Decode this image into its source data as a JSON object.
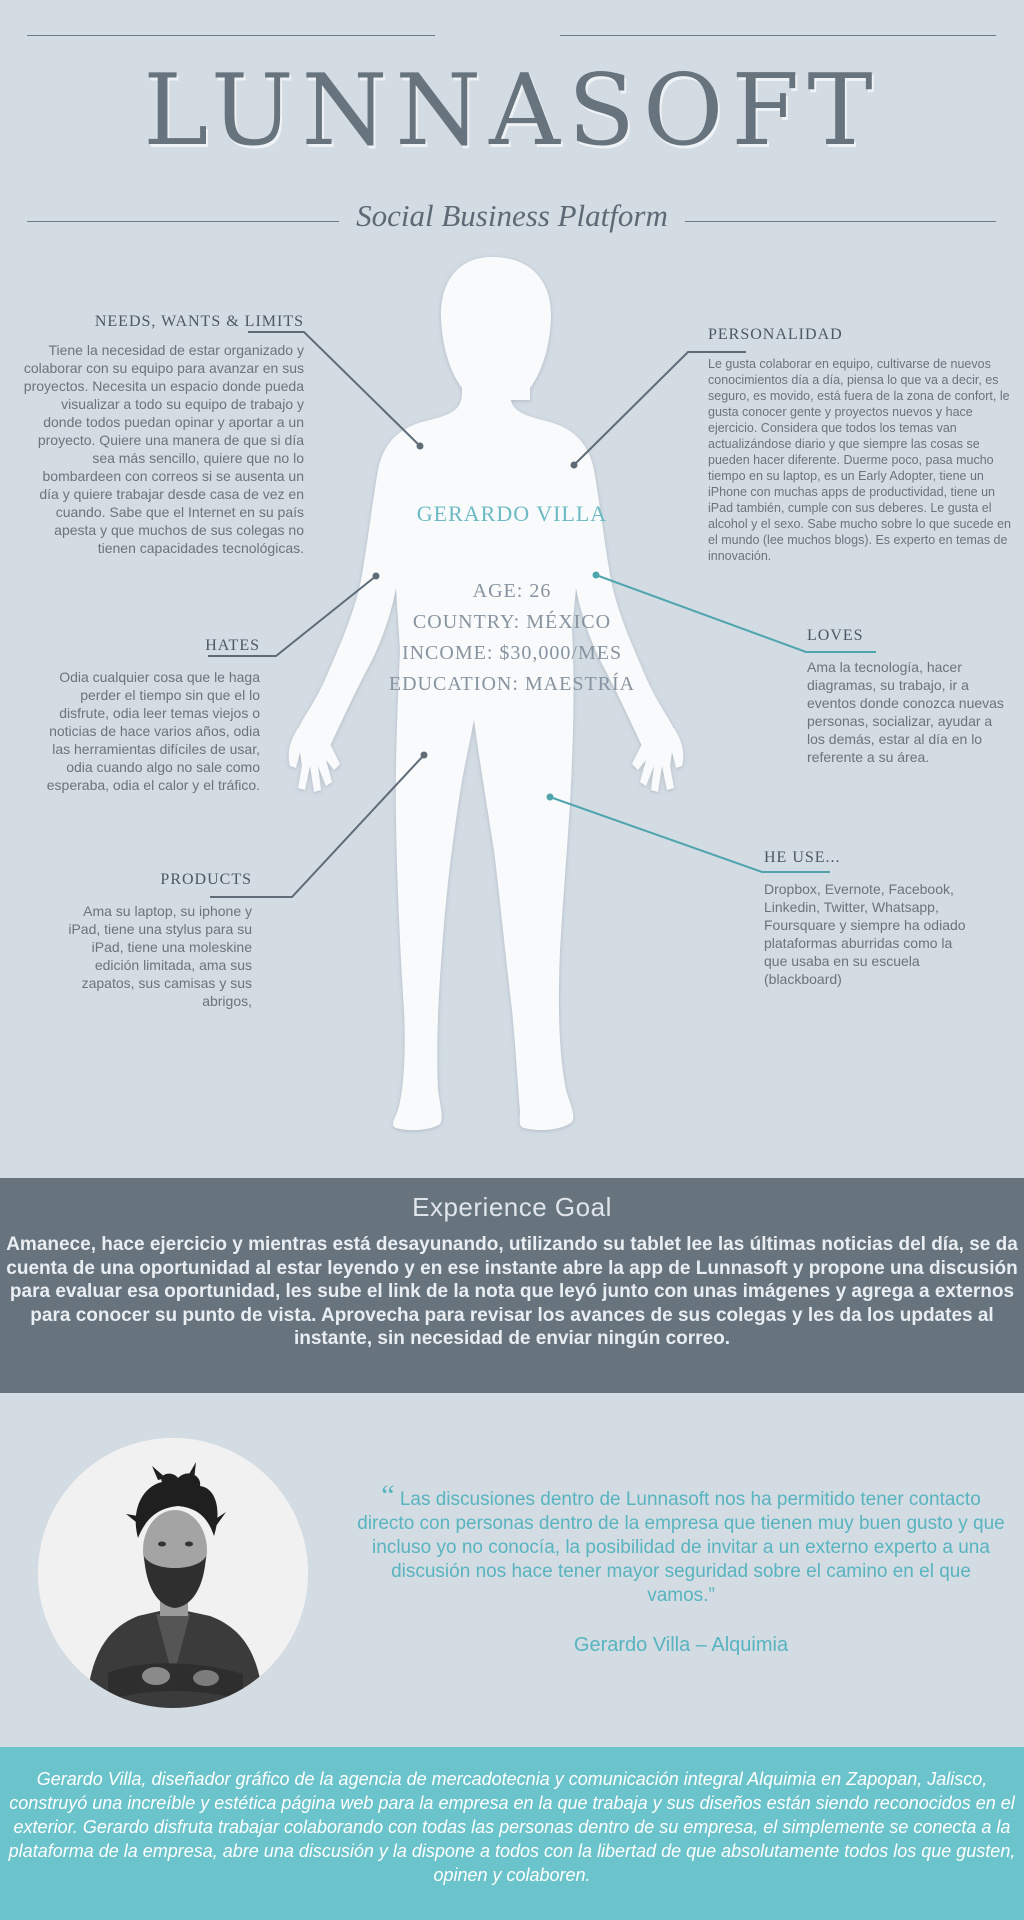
{
  "header": {
    "brand": "LUNNASOFT",
    "tagline": "Social Business Platform"
  },
  "persona": {
    "name": "GERARDO VILLA",
    "age": "AGE: 26",
    "country": "COUNTRY: MÉXICO",
    "income": "INCOME: $30,000/MES",
    "education": "EDUCATION: MAESTRÍA"
  },
  "sections": {
    "needs": {
      "title": "NEEDS, WANTS & LIMITS",
      "text": "Tiene la necesidad de estar organizado y colaborar con su equipo para avanzar en sus proyectos. Necesita un espacio donde pueda visualizar a todo su equipo de trabajo y donde todos puedan opinar y aportar a un proyecto. Quiere una manera de que si día sea más sencillo, quiere que no lo bombardeen con correos si se ausenta un día y quiere trabajar desde casa de vez en cuando. Sabe que el Internet en su país apesta y que muchos de sus colegas no tienen capacidades tecnológicas."
    },
    "personalidad": {
      "title": "PERSONALIDAD",
      "text": "Le gusta colaborar en equipo, cultivarse de nuevos conocimientos día a día, piensa lo que va a decir, es seguro, es movido, está fuera de la zona de confort, le gusta conocer gente y proyectos nuevos y hace ejercicio. Considera que todos los temas van actualizándose diario y que siempre las cosas se pueden hacer diferente. Duerme poco, pasa mucho tiempo en su laptop, es un Early Adopter, tiene un iPhone con muchas apps de productividad, tiene un iPad también, cumple con sus deberes. Le gusta el alcohol y el sexo. Sabe mucho sobre lo que sucede en el mundo (lee muchos blogs). Es experto en temas de innovación."
    },
    "hates": {
      "title": "HATES",
      "text": "Odia cualquier cosa que le haga perder el tiempo sin que el lo disfrute, odia leer temas viejos o noticias de hace varios años, odia las herramientas difíciles de usar, odia cuando algo no sale como esperaba, odia el calor y el tráfico."
    },
    "loves": {
      "title": "LOVES",
      "text": "Ama la tecnología, hacer diagramas, su trabajo, ir a eventos donde conozca nuevas personas, socializar, ayudar a los demás, estar al día en lo referente a su área."
    },
    "products": {
      "title": "PRODUCTS",
      "text": "Ama su laptop, su iphone y iPad, tiene una stylus para su iPad, tiene una moleskine edición limitada, ama sus zapatos, sus camisas y sus abrigos,"
    },
    "uses": {
      "title": "HE USE...",
      "text": "Dropbox, Evernote, Facebook, Linkedin, Twitter, Whatsapp, Foursquare y siempre ha odiado plataformas aburridas como la que usaba en su escuela (blackboard)"
    }
  },
  "goal": {
    "title": "Experience Goal",
    "text": "Amanece, hace ejercicio y mientras está desayunando, utilizando su tablet lee las últimas noticias del día, se da cuenta de una oportunidad al estar leyendo y en ese instante abre la app de Lunnasoft y propone una discusión para evaluar esa oportunidad, les sube el link de la nota que leyó junto con unas imágenes y agrega a externos para conocer su punto de vista. Aprovecha para revisar los avances de sus colegas y les da los updates al instante, sin necesidad de enviar ningún correo."
  },
  "testimonial": {
    "open_mark": "“",
    "quote": "Las discusiones dentro de Lunnasoft nos ha permitido tener contacto directo con personas dentro de la empresa que tienen muy buen gusto y que incluso yo no conocía, la posibilidad de invitar a un externo experto a una discusión nos hace tener mayor seguridad sobre el camino en el que vamos.”",
    "author": "Gerardo Villa – Alquimia"
  },
  "bio": {
    "text": "Gerardo Villa, diseñador gráfico de la agencia de mercadotecnia y comunicación integral Alquimia en Zapopan, Jalisco, construyó una increíble y estética página web para la empresa en la que trabaja y sus diseños están siendo reconocidos en el exterior. Gerardo disfruta trabajar colaborando con todas las personas dentro de su empresa, el simplemente se conecta a la plataforma de la empresa, abre una discusión y la dispone a todos con la libertad de que absolutamente todos los que gusten, opinen y colaboren."
  },
  "colors": {
    "background": "#d3dbe3",
    "slate": "#67737d",
    "teal": "#6bc4cb",
    "teal_text": "#58b4bf",
    "leader_gray": "#5f6c78",
    "leader_teal": "#4ea5ae"
  },
  "icons": [
    "human-silhouette-icon",
    "portrait-photo"
  ]
}
